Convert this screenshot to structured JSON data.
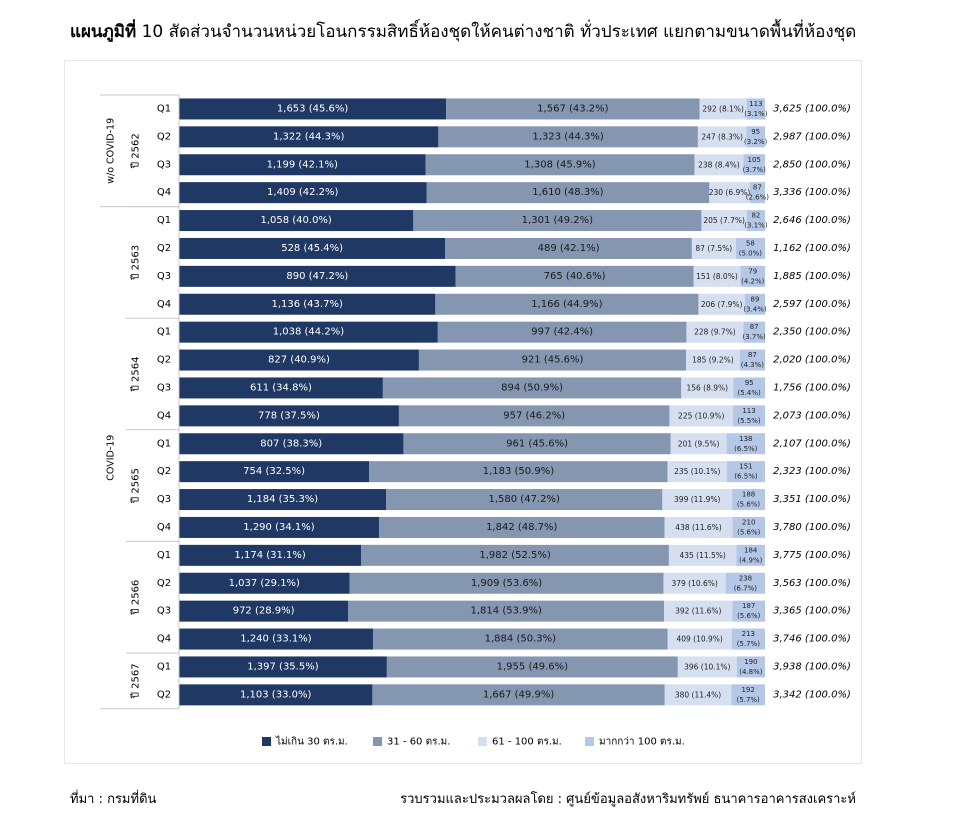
{
  "title": {
    "bold": "แผนภูมิที่",
    "rest": " 10 สัดส่วนจำนวนหน่วยโอนกรรมสิทธิ์ห้องชุดให้คนต่างชาติ ทั่วประเทศ แยกตามขนาดพื้นที่ห้องชุด"
  },
  "footer": {
    "source": "ที่มา : กรมที่ดิน",
    "compiled": "รวบรวมและประมวลผลโดย : ศูนย์ข้อมูลอสังหาริมทรัพย์ ธนาคารอาคารสงเคราะห์"
  },
  "colors": [
    "#1f3864",
    "#8496b0",
    "#d6dff0",
    "#b4c7e7"
  ],
  "chart_data": {
    "type": "bar",
    "orientation": "horizontal",
    "stacked": "percent",
    "groups": [
      {
        "label": "w/o COVID-19",
        "years": [
          {
            "label": "ปี 2562",
            "quarters": 4
          }
        ]
      },
      {
        "label": "COVID-19",
        "years": [
          {
            "label": "ปี 2563",
            "quarters": 4
          },
          {
            "label": "ปี 2564",
            "quarters": 4
          },
          {
            "label": "ปี 2565",
            "quarters": 4
          },
          {
            "label": "ปี 2566",
            "quarters": 4
          },
          {
            "label": "ปี 2567",
            "quarters": 2
          }
        ]
      }
    ],
    "categories": [
      "Q1",
      "Q2",
      "Q3",
      "Q4",
      "Q1",
      "Q2",
      "Q3",
      "Q4",
      "Q1",
      "Q2",
      "Q3",
      "Q4",
      "Q1",
      "Q2",
      "Q3",
      "Q4",
      "Q1",
      "Q2",
      "Q3",
      "Q4",
      "Q1",
      "Q2"
    ],
    "series": [
      {
        "name": "ไม่เกิน 30 ตร.ม.",
        "values": [
          1653,
          1322,
          1199,
          1409,
          1058,
          528,
          890,
          1136,
          1038,
          827,
          611,
          778,
          807,
          754,
          1184,
          1290,
          1174,
          1037,
          972,
          1240,
          1397,
          1103
        ],
        "labels": [
          "1,653  (45.6%)",
          "1,322  (44.3%)",
          "1,199  (42.1%)",
          "1,409  (42.2%)",
          "1,058  (40.0%)",
          "528  (45.4%)",
          "890  (47.2%)",
          "1,136  (43.7%)",
          "1,038  (44.2%)",
          "827  (40.9%)",
          "611  (34.8%)",
          "778  (37.5%)",
          "807  (38.3%)",
          "754  (32.5%)",
          "1,184  (35.3%)",
          "1,290  (34.1%)",
          "1,174  (31.1%)",
          "1,037  (29.1%)",
          "972  (28.9%)",
          "1,240  (33.1%)",
          "1,397  (35.5%)",
          "1,103  (33.0%)"
        ]
      },
      {
        "name": "31 - 60 ตร.ม.",
        "values": [
          1567,
          1323,
          1308,
          1610,
          1301,
          489,
          765,
          1166,
          997,
          921,
          894,
          957,
          961,
          1183,
          1580,
          1842,
          1982,
          1909,
          1814,
          1884,
          1955,
          1667
        ],
        "labels": [
          "1,567  (43.2%)",
          "1,323  (44.3%)",
          "1,308  (45.9%)",
          "1,610  (48.3%)",
          "1,301  (49.2%)",
          "489  (42.1%)",
          "765  (40.6%)",
          "1,166  (44.9%)",
          "997  (42.4%)",
          "921  (45.6%)",
          "894  (50.9%)",
          "957  (46.2%)",
          "961  (45.6%)",
          "1,183  (50.9%)",
          "1,580  (47.2%)",
          "1,842  (48.7%)",
          "1,982  (52.5%)",
          "1,909  (53.6%)",
          "1,814  (53.9%)",
          "1,884  (50.3%)",
          "1,955  (49.6%)",
          "1,667  (49.9%)"
        ]
      },
      {
        "name": "61 - 100 ตร.ม.",
        "values": [
          292,
          247,
          238,
          230,
          205,
          87,
          151,
          206,
          228,
          185,
          156,
          225,
          201,
          235,
          399,
          438,
          435,
          379,
          392,
          409,
          396,
          380
        ],
        "labels": [
          "292  (8.1%)",
          "247  (8.3%)",
          "238  (8.4%)",
          "230  (6.9%)",
          "205  (7.7%)",
          "87  (7.5%)",
          "151  (8.0%)",
          "206  (7.9%)",
          "228  (9.7%)",
          "185  (9.2%)",
          "156  (8.9%)",
          "225  (10.9%)",
          "201  (9.5%)",
          "235  (10.1%)",
          "399  (11.9%)",
          "438  (11.6%)",
          "435  (11.5%)",
          "379  (10.6%)",
          "392  (11.6%)",
          "409  (10.9%)",
          "396  (10.1%)",
          "380  (11.4%)"
        ]
      },
      {
        "name": "มากกว่า 100  ตร.ม.",
        "values": [
          113,
          95,
          105,
          87,
          82,
          58,
          79,
          89,
          87,
          87,
          95,
          113,
          138,
          151,
          188,
          210,
          184,
          238,
          187,
          213,
          190,
          192
        ],
        "labels": [
          [
            "113",
            "(3.1%)"
          ],
          [
            "95",
            "(3.2%)"
          ],
          [
            "105",
            "(3.7%)"
          ],
          [
            "87",
            "(2.6%)"
          ],
          [
            "82",
            "(3.1%)"
          ],
          [
            "58",
            "(5.0%)"
          ],
          [
            "79",
            "(4.2%)"
          ],
          [
            "89",
            "(3.4%)"
          ],
          [
            "87",
            "(3.7%)"
          ],
          [
            "87",
            "(4.3%)"
          ],
          [
            "95",
            "(5.4%)"
          ],
          [
            "113",
            "(5.5%)"
          ],
          [
            "138",
            "(6.5%)"
          ],
          [
            "151",
            "(6.5%)"
          ],
          [
            "188",
            "(5.6%)"
          ],
          [
            "210",
            "(5.6%)"
          ],
          [
            "184",
            "(4.9%)"
          ],
          [
            "238",
            "(6.7%)"
          ],
          [
            "187",
            "(5.6%)"
          ],
          [
            "213",
            "(5.7%)"
          ],
          [
            "190",
            "(4.8%)"
          ],
          [
            "192",
            "(5.7%)"
          ]
        ]
      }
    ],
    "totals": [
      "3,625  (100.0%)",
      "2,987  (100.0%)",
      "2,850  (100.0%)",
      "3,336  (100.0%)",
      "2,646  (100.0%)",
      "1,162  (100.0%)",
      "1,885  (100.0%)",
      "2,597  (100.0%)",
      "2,350  (100.0%)",
      "2,020  (100.0%)",
      "1,756  (100.0%)",
      "2,073  (100.0%)",
      "2,107  (100.0%)",
      "2,323  (100.0%)",
      "3,351  (100.0%)",
      "3,780  (100.0%)",
      "3,775  (100.0%)",
      "3,563  (100.0%)",
      "3,365  (100.0%)",
      "3,746  (100.0%)",
      "3,938  (100.0%)",
      "3,342  (100.0%)"
    ],
    "xlim": [
      0,
      100
    ],
    "legend": "bottom"
  }
}
